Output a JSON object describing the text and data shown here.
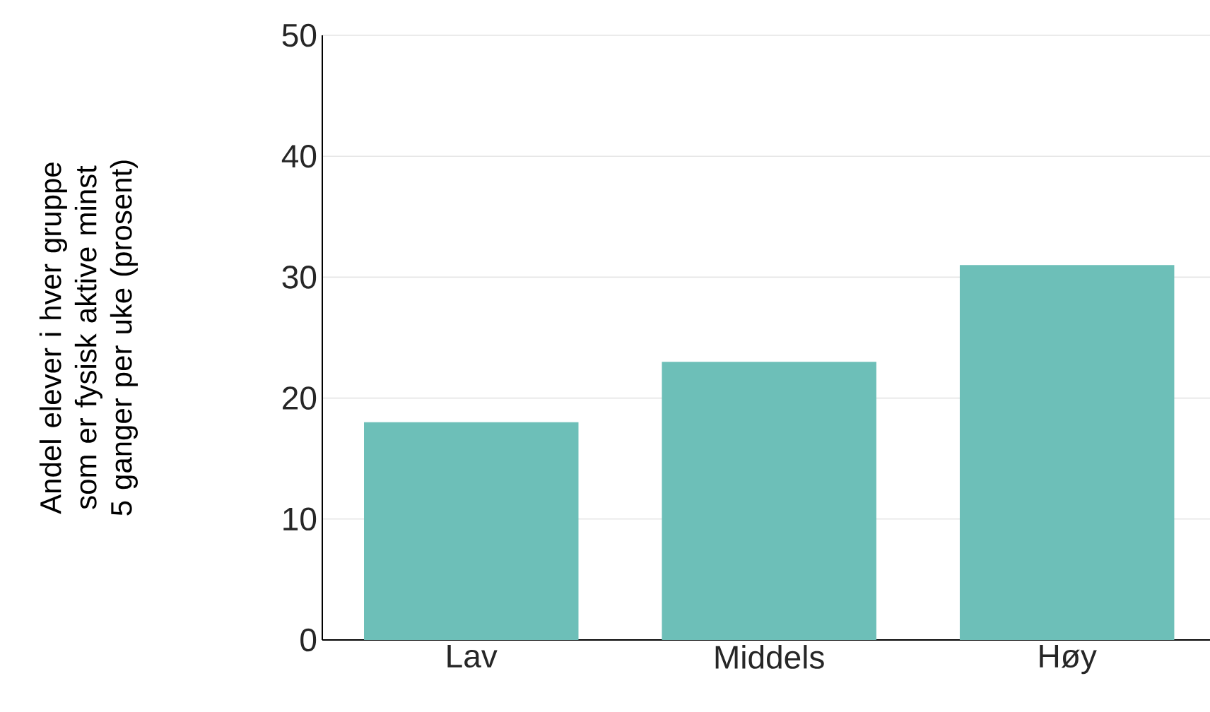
{
  "chart_data": {
    "type": "bar",
    "ylabel": "Andel elever i hver gruppe som er fysisk aktive minst 5 ganger per uke (prosent)",
    "categories": [
      "Lav",
      "Middels",
      "Høy"
    ],
    "values": [
      18,
      23,
      31
    ],
    "color": "#6dbfb8",
    "ylim": [
      0,
      50
    ],
    "yticks": [
      0,
      10,
      20,
      30,
      40,
      50
    ],
    "grid": "y"
  }
}
